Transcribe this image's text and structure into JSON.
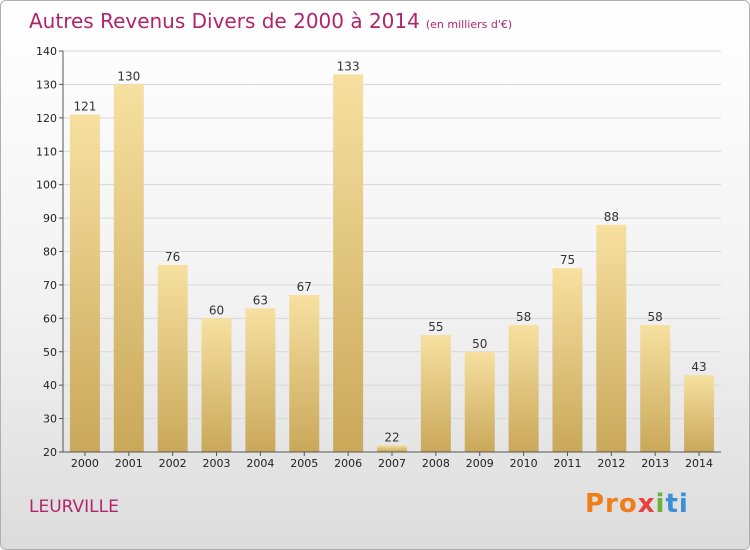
{
  "header": {
    "title": "Autres Revenus Divers de 2000 à 2014",
    "unit": "(en milliers d'€)"
  },
  "footer": {
    "city": "LEURVILLE",
    "logo_parts": [
      "Pro",
      "x",
      "i",
      "ti"
    ]
  },
  "colors": {
    "title": "#b0256a",
    "bar_top": "#f7e0a0",
    "bar_bottom": "#c9a85a",
    "grid": "#d8d8d8"
  },
  "chart_data": {
    "type": "bar",
    "title": "Autres Revenus Divers de 2000 à 2014",
    "subtitle": "(en milliers d'€)",
    "categories": [
      "2000",
      "2001",
      "2002",
      "2003",
      "2004",
      "2005",
      "2006",
      "2007",
      "2008",
      "2009",
      "2010",
      "2011",
      "2012",
      "2013",
      "2014"
    ],
    "values": [
      121,
      130,
      76,
      60,
      63,
      67,
      133,
      22,
      55,
      50,
      58,
      75,
      88,
      58,
      43
    ],
    "ylim": [
      20,
      140
    ],
    "yticks": [
      20,
      30,
      40,
      50,
      60,
      70,
      80,
      90,
      100,
      110,
      120,
      130,
      140
    ],
    "xlabel": "",
    "ylabel": "",
    "grid": true,
    "legend": "none"
  }
}
